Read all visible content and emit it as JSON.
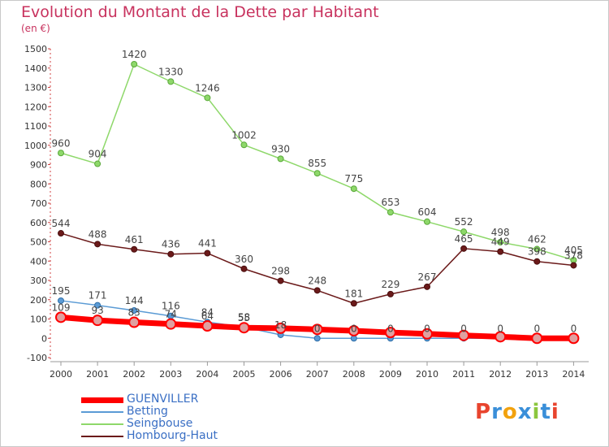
{
  "chart_data": {
    "type": "line",
    "title": "Evolution du Montant de la Dette par Habitant",
    "subtitle": "(en €)",
    "x": [
      "2000",
      "2001",
      "2002",
      "2003",
      "2004",
      "2005",
      "2006",
      "2007",
      "2008",
      "2009",
      "2010",
      "2011",
      "2012",
      "2013",
      "2014"
    ],
    "ylim": [
      -100,
      1500
    ],
    "yticks": [
      -100,
      0,
      100,
      200,
      300,
      400,
      500,
      600,
      700,
      800,
      900,
      1000,
      1100,
      1200,
      1300,
      1400,
      1500
    ],
    "grid": false,
    "legend_position": "bottom-left",
    "series": [
      {
        "name": "GUENVILLER",
        "color": "#ff0000",
        "values": [
          109,
          93,
          83,
          74,
          64,
          55,
          52,
          46,
          39,
          30,
          23,
          15,
          8,
          0,
          0
        ]
      },
      {
        "name": "Betting",
        "color": "#5b9bd5",
        "values": [
          195,
          171,
          144,
          116,
          84,
          58,
          18,
          0,
          0,
          0,
          0,
          0,
          0,
          0,
          0
        ]
      },
      {
        "name": "Seingbouse",
        "color": "#8ed86a",
        "values": [
          960,
          904,
          1420,
          1330,
          1246,
          1002,
          930,
          855,
          775,
          653,
          604,
          552,
          498,
          462,
          405
        ]
      },
      {
        "name": "Hombourg-Haut",
        "color": "#6b1a1a",
        "values": [
          544,
          488,
          461,
          436,
          441,
          360,
          298,
          248,
          181,
          229,
          267,
          465,
          449,
          398,
          378
        ]
      }
    ],
    "label_values": [
      {
        "series": "GUENVILLER",
        "labels": [
          "109",
          "93",
          "83",
          "74",
          "64",
          "55",
          "",
          "",
          "",
          "",
          "",
          "",
          "",
          "",
          ""
        ]
      },
      {
        "series": "Betting",
        "labels": [
          "195",
          "171",
          "144",
          "116",
          "84",
          "58",
          "18",
          "0",
          "0",
          "0",
          "0",
          "0",
          "0",
          "0",
          "0"
        ]
      },
      {
        "series": "Seingbouse",
        "labels": [
          "960",
          "904",
          "1420",
          "1330",
          "1246",
          "1002",
          "930",
          "855",
          "775",
          "653",
          "604",
          "552",
          "498",
          "462",
          "405"
        ]
      },
      {
        "series": "Hombourg-Haut",
        "labels": [
          "544",
          "488",
          "461",
          "436",
          "441",
          "360",
          "298",
          "248",
          "181",
          "229",
          "267",
          "465",
          "449",
          "398",
          "378"
        ]
      }
    ]
  },
  "logo": {
    "text": "Proxiti",
    "colors": [
      "#e8442e",
      "#3a8fd9",
      "#f2a20e",
      "#3a8fd9",
      "#8bc63e",
      "#3a8fd9",
      "#e8442e"
    ]
  }
}
